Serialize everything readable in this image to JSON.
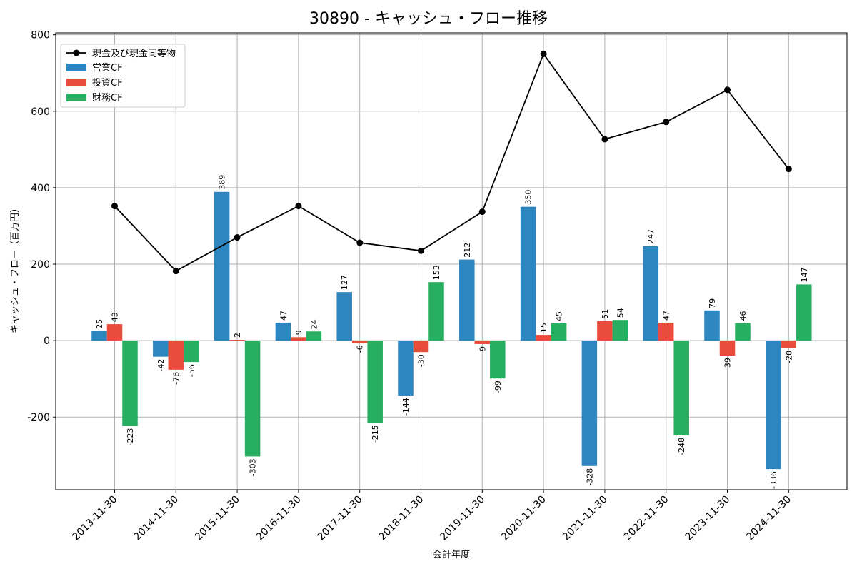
{
  "chart_data": {
    "type": "bar",
    "title": "30890 - キャッシュ・フロー推移",
    "xlabel": "会計年度",
    "ylabel": "キャッシュ・フロー（百万円）",
    "ylim": [
      -390,
      805
    ],
    "yticks": [
      -200,
      0,
      200,
      400,
      600,
      800
    ],
    "grid": true,
    "legend_position": "top-left",
    "categories": [
      "2013-11-30",
      "2014-11-30",
      "2015-11-30",
      "2016-11-30",
      "2017-11-30",
      "2018-11-30",
      "2019-11-30",
      "2020-11-30",
      "2021-11-30",
      "2022-11-30",
      "2023-11-30",
      "2024-11-30"
    ],
    "series": [
      {
        "name": "営業CF",
        "color": "#2e86c1",
        "values": [
          25,
          -42,
          389,
          47,
          127,
          -144,
          212,
          350,
          -328,
          247,
          79,
          -336
        ]
      },
      {
        "name": "投資CF",
        "color": "#e74c3c",
        "values": [
          43,
          -76,
          2,
          9,
          -6,
          -30,
          -9,
          15,
          51,
          47,
          -39,
          -20
        ]
      },
      {
        "name": "財務CF",
        "color": "#27ae60",
        "values": [
          -223,
          -56,
          -303,
          24,
          -215,
          153,
          -99,
          45,
          54,
          -248,
          46,
          147
        ]
      }
    ],
    "line": {
      "name": "現金及び現金同等物",
      "color": "#000000",
      "values": [
        352,
        182,
        270,
        352,
        256,
        235,
        337,
        750,
        527,
        572,
        656,
        449
      ]
    }
  }
}
